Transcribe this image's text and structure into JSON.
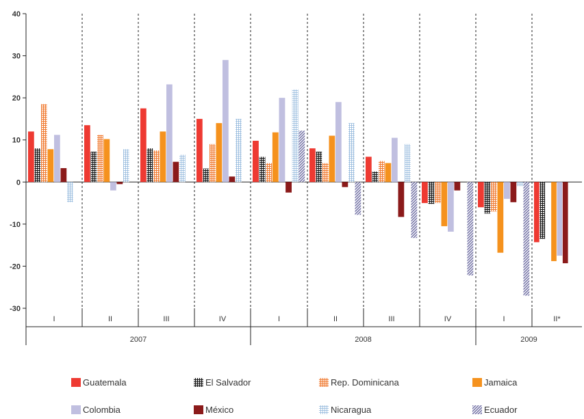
{
  "chart_data": {
    "type": "bar",
    "title": "",
    "xlabel": "",
    "ylabel": "",
    "ylim": [
      -30,
      40
    ],
    "yticks": [
      -30,
      -20,
      -10,
      0,
      10,
      20,
      30,
      40
    ],
    "grid": false,
    "legend_position": "bottom",
    "categories": [
      "I",
      "II",
      "III",
      "IV",
      "I",
      "II",
      "III",
      "IV",
      "I",
      "II*"
    ],
    "year_groups": [
      {
        "label": "2007",
        "span": 4
      },
      {
        "label": "2008",
        "span": 4
      },
      {
        "label": "2009",
        "span": 2
      }
    ],
    "series": [
      {
        "name": "Guatemala",
        "color": "#ee3a32",
        "pattern": "solid",
        "values": [
          12.0,
          13.5,
          17.5,
          15.0,
          9.8,
          8.0,
          6.0,
          -5.0,
          -6.0,
          -14.3
        ]
      },
      {
        "name": "El Salvador",
        "color": "#111111",
        "pattern": "grid",
        "values": [
          8.0,
          7.2,
          8.0,
          3.2,
          6.0,
          7.2,
          2.5,
          -5.2,
          -7.5,
          -13.5
        ]
      },
      {
        "name": "Rep. Dominicana",
        "color": "#f07a30",
        "pattern": "grid",
        "values": [
          18.5,
          11.2,
          7.5,
          9.0,
          4.5,
          4.5,
          5.0,
          -5.0,
          -7.0,
          null
        ]
      },
      {
        "name": "Jamaica",
        "color": "#f5921e",
        "pattern": "solid",
        "values": [
          7.8,
          10.2,
          12.0,
          14.0,
          11.8,
          11.0,
          4.5,
          -10.5,
          -16.8,
          -18.8
        ]
      },
      {
        "name": "Colombia",
        "color": "#c0bfe0",
        "pattern": "solid",
        "values": [
          11.2,
          -2.0,
          23.2,
          29.0,
          20.0,
          19.0,
          10.5,
          -11.8,
          -4.0,
          -17.5
        ]
      },
      {
        "name": "México",
        "color": "#8b1a1a",
        "pattern": "solid",
        "values": [
          3.3,
          -0.5,
          4.8,
          1.3,
          -2.5,
          -1.2,
          -8.3,
          -2.0,
          -4.8,
          -19.3
        ]
      },
      {
        "name": "Nicaragua",
        "color": "#8fb6dc",
        "pattern": "dots",
        "values": [
          -4.8,
          7.8,
          6.5,
          15.0,
          22.0,
          14.0,
          9.0,
          null,
          -1.0,
          null
        ]
      },
      {
        "name": "Ecuador",
        "color": "#6f6ea3",
        "pattern": "hatch",
        "values": [
          null,
          null,
          null,
          null,
          12.2,
          -7.8,
          -13.3,
          -22.2,
          -27.0,
          null
        ]
      }
    ]
  }
}
